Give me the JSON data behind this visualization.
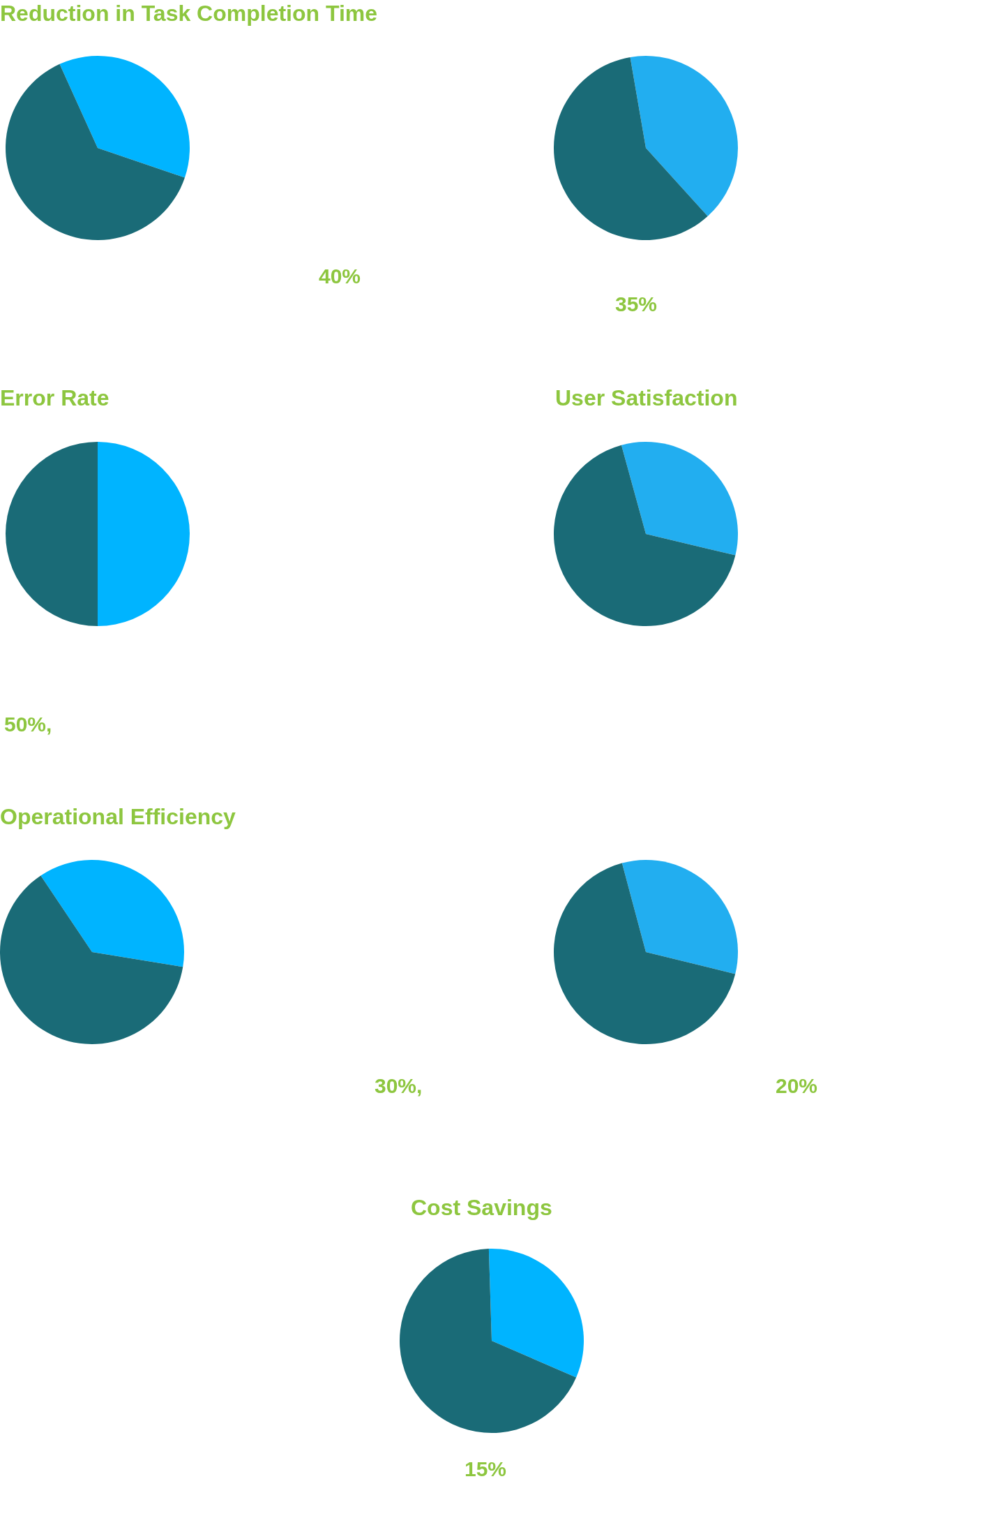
{
  "chart_data": [
    {
      "type": "pie",
      "title": "Reduction in Task Completion Time",
      "categories": [
        null,
        null
      ],
      "values": [
        37,
        63
      ],
      "colors": [
        "#00b4ff",
        "#1a6b77"
      ],
      "annotations": [
        "40%"
      ]
    },
    {
      "type": "pie",
      "categories": [
        null,
        null
      ],
      "values": [
        41,
        59
      ],
      "colors": [
        "#22aef0",
        "#1a6b77"
      ],
      "annotations": [
        "35%"
      ]
    },
    {
      "type": "pie",
      "title": "Error Rate",
      "categories": [
        null,
        null
      ],
      "values": [
        50,
        50
      ],
      "colors": [
        "#00b4ff",
        "#1a6b77"
      ],
      "annotations": [
        "50%,"
      ]
    },
    {
      "type": "pie",
      "title": "User Satisfaction",
      "categories": [
        null,
        null
      ],
      "values": [
        33,
        67
      ],
      "colors": [
        "#22aef0",
        "#1a6b77"
      ]
    },
    {
      "type": "pie",
      "title": "Operational Efficiency",
      "categories": [
        null,
        null
      ],
      "values": [
        37,
        63
      ],
      "colors": [
        "#00b4ff",
        "#1a6b77"
      ],
      "annotations": [
        "30%,"
      ]
    },
    {
      "type": "pie",
      "categories": [
        null,
        null
      ],
      "values": [
        33,
        67
      ],
      "colors": [
        "#22aef0",
        "#1a6b77"
      ],
      "annotations": [
        "20%"
      ]
    },
    {
      "type": "pie",
      "title": "Cost Savings",
      "categories": [
        null,
        null
      ],
      "values": [
        32,
        68
      ],
      "colors": [
        "#00b4ff",
        "#1a6b77"
      ],
      "annotations": [
        "15%"
      ]
    }
  ]
}
